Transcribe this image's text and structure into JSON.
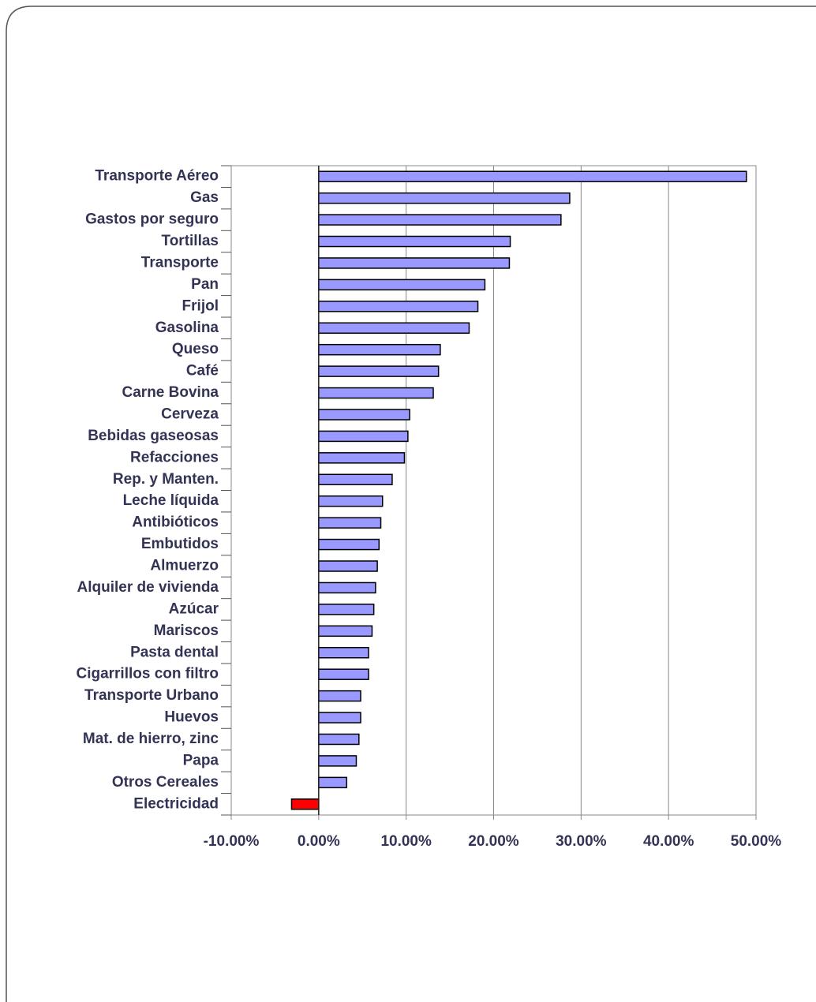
{
  "chart_data": {
    "type": "hbar",
    "categories": [
      "Transporte Aéreo",
      "Gas",
      "Gastos por seguro",
      "Tortillas",
      "Transporte",
      "Pan",
      "Frijol",
      "Gasolina",
      "Queso",
      "Café",
      "Carne Bovina",
      "Cerveza",
      "Bebidas gaseosas",
      "Refacciones",
      "Rep. y Manten.",
      "Leche líquida",
      "Antibióticos",
      "Embutidos",
      "Almuerzo",
      "Alquiler de vivienda",
      "Azúcar",
      "Mariscos",
      "Pasta dental",
      "Cigarrillos con filtro",
      "Transporte Urbano",
      "Huevos",
      "Mat. de hierro, zinc",
      "Papa",
      "Otros Cereales",
      "Electricidad"
    ],
    "values": [
      48.9,
      28.7,
      27.7,
      21.9,
      21.8,
      19.0,
      18.2,
      17.2,
      13.9,
      13.7,
      13.1,
      10.4,
      10.2,
      9.8,
      8.4,
      7.3,
      7.1,
      6.9,
      6.7,
      6.5,
      6.3,
      6.1,
      5.7,
      5.7,
      4.8,
      4.8,
      4.6,
      4.3,
      3.2,
      -3.1
    ],
    "color": "#9999ff",
    "negative_color": "#ff0000",
    "xlim": [
      -10,
      50
    ],
    "xticks": [
      {
        "value": -10,
        "label": "-10.00%"
      },
      {
        "value": 0,
        "label": "0.00%"
      },
      {
        "value": 10,
        "label": "10.00%"
      },
      {
        "value": 20,
        "label": "20.00%"
      },
      {
        "value": 30,
        "label": "30.00%"
      },
      {
        "value": 40,
        "label": "40.00%"
      },
      {
        "value": 50,
        "label": "50.00%"
      }
    ],
    "grid": true
  }
}
